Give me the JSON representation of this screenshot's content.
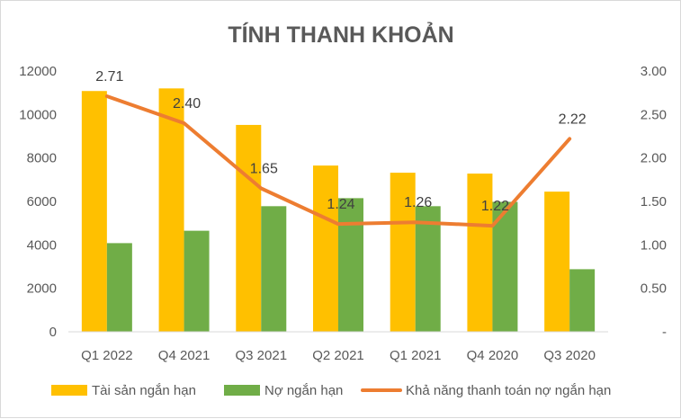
{
  "chart_data": {
    "type": "bar",
    "title": "TÍNH THANH KHOẢN",
    "categories": [
      "Q1 2022",
      "Q4 2021",
      "Q3 2021",
      "Q2 2021",
      "Q1 2021",
      "Q4 2020",
      "Q3 2020"
    ],
    "series": [
      {
        "name": "Tài sản ngắn hạn",
        "type": "bar",
        "axis": "left",
        "color": "#FFC000",
        "values": [
          11080,
          11200,
          9520,
          7650,
          7320,
          7280,
          6450
        ]
      },
      {
        "name": "Nợ ngắn hạn",
        "type": "bar",
        "axis": "left",
        "color": "#70AD47",
        "values": [
          4080,
          4650,
          5780,
          6150,
          5780,
          5980,
          2880
        ]
      },
      {
        "name": "Khả năng thanh toán nợ ngắn hạn",
        "type": "line",
        "axis": "right",
        "color": "#ED7D31",
        "values": [
          2.71,
          2.4,
          1.65,
          1.24,
          1.26,
          1.22,
          2.22
        ],
        "labels": [
          "2.71",
          "2.40",
          "1.65",
          "1.24",
          "1.26",
          "1.22",
          "2.22"
        ]
      }
    ],
    "y_left": {
      "min": 0,
      "max": 12000,
      "ticks": [
        "0",
        "2000",
        "4000",
        "6000",
        "8000",
        "10000",
        "12000"
      ]
    },
    "y_right": {
      "min": 0,
      "max": 3,
      "ticks": [
        "-",
        "0.50",
        "1.00",
        "1.50",
        "2.00",
        "2.50",
        "3.00"
      ]
    },
    "legend_position": "bottom",
    "grid": false
  }
}
